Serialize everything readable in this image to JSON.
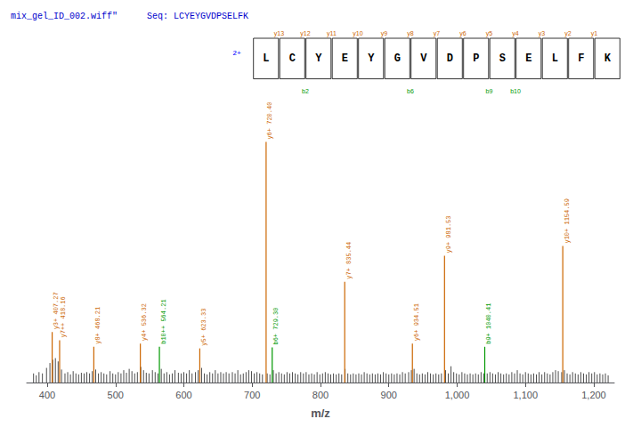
{
  "chart_data": {
    "type": "stem",
    "title": "mix_gel_ID_002.wiff\"",
    "subtitle": "Seq: LCYEYGVDPSELFK",
    "title_color": "#0000cc",
    "xlabel": "m/z",
    "xlim": [
      370,
      1230
    ],
    "xticks": [
      400,
      500,
      600,
      700,
      800,
      900,
      1000,
      1100,
      1200
    ],
    "ylim": [
      0,
      780
    ],
    "tick_labels": "x",
    "grid": false,
    "series": [
      {
        "color": "#000000",
        "x": [
          380,
          384,
          388,
          393,
          399,
          404,
          408,
          412,
          416,
          421,
          426,
          430,
          434,
          438,
          442,
          446,
          450,
          454,
          458,
          462,
          466,
          471,
          475,
          479,
          483,
          487,
          492,
          496,
          500,
          504,
          508,
          512,
          516,
          520,
          524,
          528,
          532,
          537,
          541,
          545,
          549,
          554,
          558,
          562,
          567,
          571,
          575,
          579,
          583,
          587,
          592,
          596,
          600,
          604,
          608,
          612,
          617,
          621,
          626,
          630,
          634,
          638,
          642,
          646,
          650,
          654,
          658,
          662,
          666,
          671,
          675,
          679,
          683,
          687,
          691,
          695,
          699,
          703,
          707,
          711,
          715,
          722,
          726,
          731,
          735,
          739,
          743,
          747,
          751,
          755,
          759,
          763,
          767,
          771,
          775,
          779,
          783,
          787,
          791,
          795,
          799,
          803,
          807,
          811,
          815,
          819,
          823,
          827,
          831,
          836,
          840,
          844,
          848,
          852,
          856,
          860,
          864,
          868,
          872,
          876,
          880,
          884,
          888,
          892,
          896,
          900,
          904,
          908,
          912,
          916,
          920,
          924,
          929,
          933,
          937,
          941,
          945,
          949,
          953,
          957,
          961,
          965,
          969,
          973,
          977,
          983,
          987,
          991,
          995,
          999,
          1003,
          1007,
          1011,
          1015,
          1019,
          1023,
          1027,
          1031,
          1035,
          1039,
          1044,
          1048,
          1052,
          1056,
          1060,
          1064,
          1068,
          1072,
          1076,
          1080,
          1084,
          1088,
          1092,
          1096,
          1100,
          1104,
          1108,
          1112,
          1116,
          1120,
          1124,
          1128,
          1132,
          1136,
          1140,
          1144,
          1148,
          1153,
          1157,
          1161,
          1165,
          1169,
          1173,
          1177,
          1181,
          1185,
          1189,
          1193,
          1197,
          1201,
          1205,
          1209,
          1213,
          1217,
          1221
        ],
        "values": [
          28,
          22,
          32,
          28,
          45,
          60,
          70,
          75,
          65,
          40,
          28,
          32,
          25,
          35,
          28,
          25,
          30,
          28,
          32,
          28,
          35,
          40,
          28,
          32,
          28,
          25,
          35,
          28,
          25,
          32,
          28,
          38,
          30,
          42,
          35,
          28,
          32,
          48,
          38,
          30,
          28,
          38,
          32,
          28,
          42,
          28,
          32,
          25,
          28,
          38,
          30,
          28,
          32,
          28,
          38,
          28,
          32,
          38,
          45,
          28,
          25,
          32,
          28,
          38,
          28,
          32,
          28,
          32,
          28,
          32,
          28,
          38,
          25,
          28,
          32,
          38,
          35,
          28,
          32,
          28,
          25,
          28,
          25,
          38,
          28,
          32,
          28,
          25,
          32,
          28,
          32,
          28,
          25,
          32,
          28,
          32,
          25,
          28,
          25,
          32,
          25,
          28,
          32,
          28,
          25,
          28,
          25,
          28,
          25,
          42,
          28,
          25,
          28,
          25,
          28,
          25,
          32,
          28,
          25,
          28,
          25,
          28,
          25,
          32,
          28,
          25,
          28,
          25,
          28,
          25,
          32,
          28,
          32,
          38,
          42,
          28,
          25,
          28,
          25,
          32,
          28,
          25,
          28,
          25,
          28,
          38,
          28,
          50,
          32,
          28,
          25,
          32,
          28,
          25,
          28,
          25,
          28,
          25,
          32,
          28,
          28,
          32,
          28,
          25,
          32,
          28,
          25,
          28,
          25,
          32,
          28,
          38,
          28,
          25,
          32,
          28,
          25,
          28,
          25,
          32,
          25,
          32,
          28,
          25,
          32,
          38,
          35,
          32,
          38,
          28,
          25,
          32,
          28,
          25,
          32,
          28,
          25,
          32,
          28,
          32,
          25,
          28,
          25,
          28,
          22
        ]
      },
      {
        "x": [
          407.27,
          418.16,
          468.21,
          536.32,
          564.21,
          623.33,
          720.4,
          729.3,
          835.44,
          934.51,
          981.53,
          1040.41,
          1154.59
        ],
        "values": [
          155,
          130,
          110,
          120,
          110,
          105,
          740,
          108,
          310,
          120,
          390,
          110,
          420
        ],
        "colors": [
          "#cc6600",
          "#cc6600",
          "#cc6600",
          "#cc6600",
          "#009900",
          "#cc6600",
          "#cc6600",
          "#009900",
          "#cc6600",
          "#cc6600",
          "#cc6600",
          "#009900",
          "#cc6600"
        ],
        "labels": [
          "y3+ 407.27",
          "y7++ 418.16",
          "y8+ 468.21",
          "y4+ 536.32",
          "b10++ 564.21",
          "y5+ 623.33",
          "y6+ 720.40",
          "b6+ 729.30",
          "y7+ 835.44",
          "y6+ 934.51",
          "y9+ 981.53",
          "b9+ 1040.41",
          "y10+ 1154.59"
        ]
      }
    ],
    "sequence": {
      "residues": [
        "L",
        "C",
        "Y",
        "E",
        "Y",
        "G",
        "V",
        "D",
        "P",
        "S",
        "E",
        "L",
        "F",
        "K"
      ],
      "box_color": "#000000",
      "charge_label": "2+",
      "charge_color": "blue",
      "y_ions": [
        "y13",
        "y12",
        "y11",
        "y10",
        "y9",
        "y8",
        "y7",
        "y6",
        "y5",
        "y4",
        "y3",
        "y2",
        "y1"
      ],
      "y_ion_color": "#cc6600",
      "b_ions": [
        {
          "position": 1,
          "label": "b2"
        },
        {
          "position": 5,
          "label": "b6"
        },
        {
          "position": 8,
          "label": "b9"
        },
        {
          "position": 9,
          "label": "b10"
        }
      ],
      "b_ion_color": "#009900"
    }
  }
}
